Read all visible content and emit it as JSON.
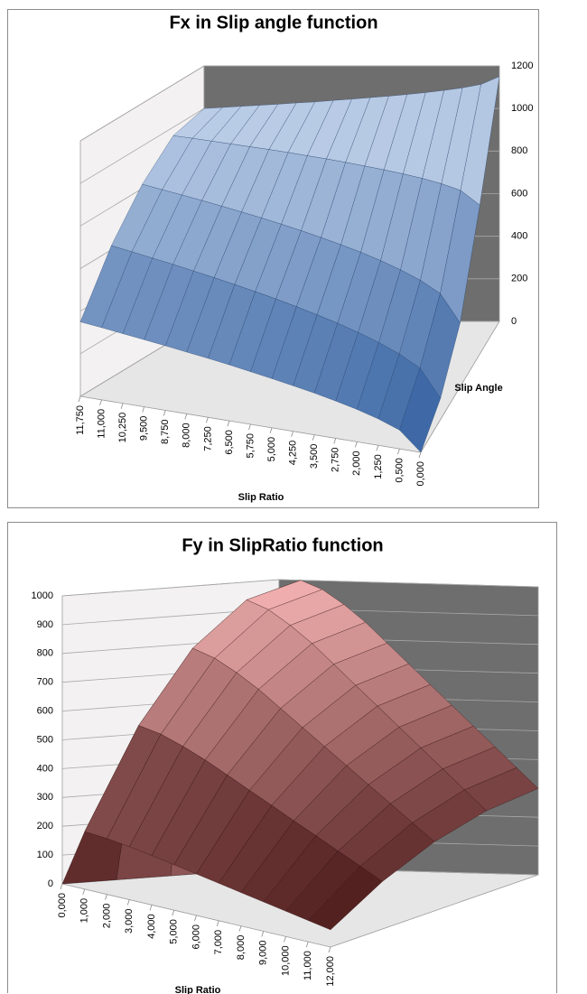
{
  "chart_data": [
    {
      "type": "surface",
      "title": "Fx in Slip angle function",
      "xlabel": "Slip Ratio",
      "ylabel": "Slip Angle",
      "categories": [
        "11,750",
        "11,000",
        "10,250",
        "9,500",
        "8,750",
        "8,000",
        "7,250",
        "6,500",
        "5,750",
        "5,000",
        "4,250",
        "3,500",
        "2,750",
        "2,000",
        "1,250",
        "0,500",
        "0,000"
      ],
      "series": [
        {
          "values": [
            350,
            339,
            327,
            315,
            303,
            290,
            277,
            263,
            247,
            231,
            214,
            196,
            175,
            152,
            124,
            88,
            0
          ]
        },
        {
          "values": [
            620,
            603,
            586,
            569,
            550,
            531,
            511,
            490,
            468,
            444,
            418,
            391,
            360,
            325,
            284,
            230,
            100
          ]
        },
        {
          "values": [
            820,
            803,
            786,
            769,
            750,
            731,
            711,
            690,
            668,
            644,
            618,
            591,
            560,
            525,
            484,
            430,
            300
          ]
        },
        {
          "values": [
            960,
            952,
            943,
            934,
            925,
            916,
            906,
            895,
            884,
            872,
            859,
            845,
            830,
            813,
            792,
            765,
            700
          ]
        },
        {
          "values": [
            1000,
            1005,
            1010,
            1015,
            1020,
            1026,
            1031,
            1038,
            1044,
            1051,
            1058,
            1066,
            1075,
            1085,
            1097,
            1113,
            1150
          ]
        }
      ],
      "zlim": [
        0,
        1200
      ],
      "zticks": [
        0,
        200,
        400,
        600,
        800,
        1000,
        1200
      ],
      "grid": true,
      "colors": [
        "#2f5d9e",
        "#d9e5f6"
      ]
    },
    {
      "type": "surface",
      "title": "Fy in SlipRatio function",
      "xlabel": "Slip Ratio",
      "categories": [
        "0,000",
        "1,000",
        "2,000",
        "3,000",
        "4,000",
        "5,000",
        "6,000",
        "7,000",
        "8,000",
        "9,000",
        "10,000",
        "11,000",
        "12,000"
      ],
      "series": [
        {
          "values": [
            0,
            200,
            194,
            184,
            172,
            158,
            144,
            130,
            116,
            102,
            88,
            74,
            60
          ]
        },
        {
          "values": [
            0,
            550,
            534,
            506,
            473,
            435,
            396,
            358,
            319,
            281,
            242,
            204,
            165
          ]
        },
        {
          "values": [
            0,
            800,
            776,
            736,
            688,
            632,
            576,
            520,
            464,
            408,
            352,
            296,
            240
          ]
        },
        {
          "values": [
            0,
            950,
            922,
            874,
            817,
            751,
            684,
            618,
            551,
            485,
            418,
            352,
            285
          ]
        },
        {
          "values": [
            0,
            1000,
            970,
            920,
            860,
            790,
            720,
            650,
            580,
            510,
            440,
            370,
            300
          ]
        }
      ],
      "zlim": [
        0,
        1000
      ],
      "zticks": [
        0,
        100,
        200,
        300,
        400,
        500,
        600,
        700,
        800,
        900,
        1000
      ],
      "grid": true,
      "colors": [
        "#3d0c0c",
        "#f6b4b4"
      ]
    }
  ]
}
